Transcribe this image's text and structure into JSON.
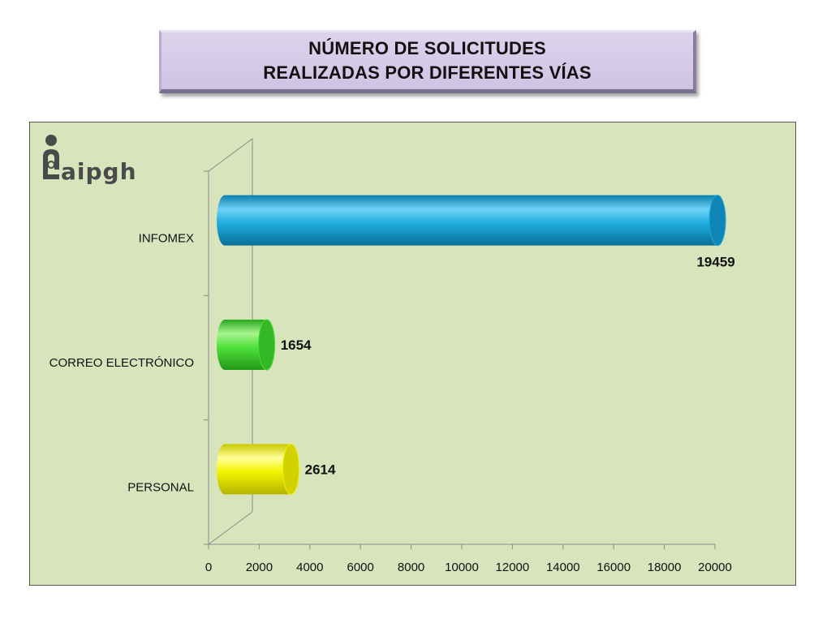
{
  "title": {
    "line1": "NÚMERO DE SOLICITUDES",
    "line2": "REALIZADAS POR DIFERENTES VÍAS"
  },
  "logo": {
    "text": "aipgh",
    "icon": "info-i-icon"
  },
  "colors": {
    "panel_bg": "#d8e4bc",
    "title_bg": "#d6ccea",
    "infomex": "#1aa8d8",
    "correo": "#44dd33",
    "personal": "#f2f200"
  },
  "chart_data": {
    "type": "bar",
    "orientation": "horizontal",
    "style": "3d-cylinder",
    "categories": [
      "INFOMEX",
      "CORREO ELECTRÓNICO",
      "PERSONAL"
    ],
    "values": [
      19459,
      1654,
      2614
    ],
    "value_labels": [
      "19459",
      "1654",
      "2614"
    ],
    "xlim": [
      0,
      20000
    ],
    "xticks": [
      0,
      2000,
      4000,
      6000,
      8000,
      10000,
      12000,
      14000,
      16000,
      18000,
      20000
    ],
    "xtick_labels": [
      "0",
      "2000",
      "4000",
      "6000",
      "8000",
      "10000",
      "12000",
      "14000",
      "16000",
      "18000",
      "20000"
    ],
    "grid": false,
    "legend": "none"
  }
}
